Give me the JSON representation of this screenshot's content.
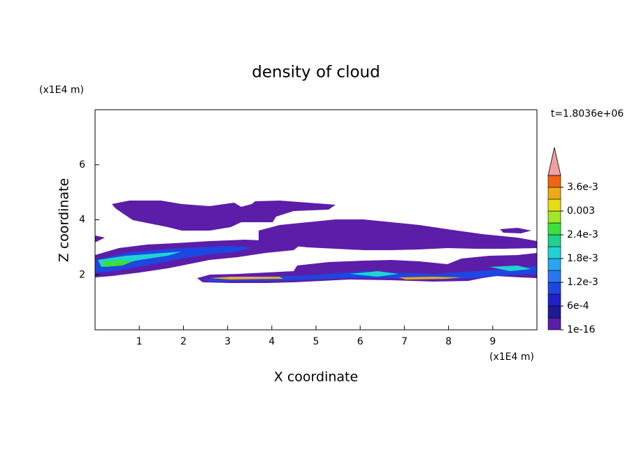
{
  "chart_data": {
    "type": "contour",
    "title": "density of cloud",
    "annotation": "t=1.8036e+06",
    "xlabel": "X coordinate",
    "ylabel": "Z coordinate",
    "x_unit": "(x1E4 m)",
    "y_unit": "(x1E4 m)",
    "xlim": [
      0,
      10
    ],
    "ylim": [
      0,
      8
    ],
    "xticks": [
      1,
      2,
      3,
      4,
      5,
      6,
      7,
      8,
      9
    ],
    "yticks": [
      2,
      4,
      6
    ],
    "levels": [
      1e-16,
      0.0003,
      0.0006,
      0.0009,
      0.0012,
      0.0015,
      0.0018,
      0.0021,
      0.0024,
      0.0027,
      0.003,
      0.0033,
      0.0036,
      0.0039
    ],
    "level_colors": [
      "#5c1ea8",
      "#1e1a96",
      "#1e22c8",
      "#1e46e0",
      "#2a78f0",
      "#28a6f0",
      "#20d2d2",
      "#20d28c",
      "#3ce03c",
      "#a0e628",
      "#e6dc14",
      "#f0a814",
      "#f06414",
      "#f0a0a0"
    ],
    "level_ticks": [
      1e-16,
      {
        "value": 0.0006,
        "label": "6e-4"
      },
      {
        "value": 0.0012,
        "label": "1.2e-3"
      },
      {
        "value": 0.0018,
        "label": "1.8e-3"
      },
      {
        "value": 0.0024,
        "label": "2.4e-3"
      },
      0.003,
      {
        "value": 0.0036,
        "label": "3.6e-3"
      }
    ]
  }
}
